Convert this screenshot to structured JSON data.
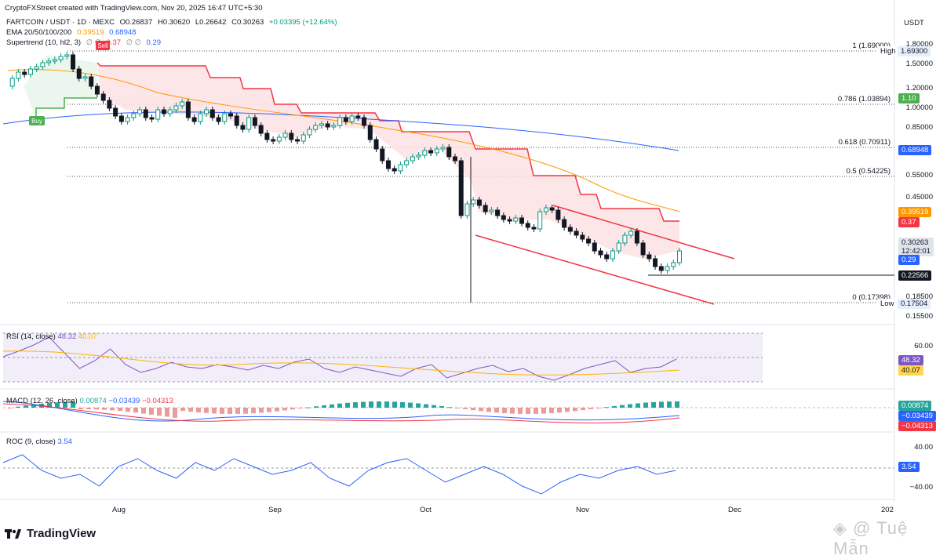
{
  "header": {
    "credit": "CryptoFXStreet created with TradingView.com, Nov 20, 2025 16:47 UTC+5:30",
    "symbol": "FARTCOIN / USDT · 1D · MEXC",
    "ohlc": {
      "o": "O0.26837",
      "h": "H0.30620",
      "l": "L0.26642",
      "c": "C0.30263",
      "chg": "+0.03395 (+12.64%)"
    },
    "ema_label": "EMA 20/50/100/200",
    "ema_values": [
      "0.39519",
      "0.68948"
    ],
    "supertrend_label": "Supertrend (10, hl2, 3)",
    "supertrend_values": [
      "0.37",
      "0.29"
    ]
  },
  "currency": "USDT",
  "price_axis": [
    "1.80000",
    "1.50000",
    "1.20000",
    "1.00000",
    "0.85000",
    "0.55000",
    "0.45000",
    "0.18500",
    "0.15500"
  ],
  "price_tags": {
    "high_label": "High",
    "high_value": "1.69300",
    "fib_1_10": "1.10",
    "ema200": "0.68948",
    "ema_orange": "0.39519",
    "supertrend_red": "0.37",
    "current": "0.30263",
    "countdown": "12:42:01",
    "supertrend_blue": "0.29",
    "support": "0.22566",
    "low_label": "Low",
    "low_value": "0.17504"
  },
  "fib_levels": [
    {
      "label": "1 (1.69000)",
      "price": 1.69
    },
    {
      "label": "0.786 (1.03894)",
      "price": 1.03894
    },
    {
      "label": "0.618 (0.70911)",
      "price": 0.70911
    },
    {
      "label": "0.5 (0.54225)",
      "price": 0.54225
    },
    {
      "label": "0 (0.17398)",
      "price": 0.17398
    }
  ],
  "signals": {
    "sell": "Sell",
    "buy": "Buy"
  },
  "rsi": {
    "label": "RSI (14, close)",
    "value": "48.32",
    "ma": "40.07",
    "axis": "60.00"
  },
  "macd": {
    "label": "MACD (12, 26, close)",
    "hist": "0.00874",
    "macd": "−0.03439",
    "signal": "−0.04313"
  },
  "roc": {
    "label": "ROC (9, close)",
    "value": "3.54",
    "axis_top": "40.00",
    "axis_bottom": "−40.00"
  },
  "x_axis": [
    "Aug",
    "Sep",
    "Oct",
    "Nov",
    "Dec",
    "202"
  ],
  "colors": {
    "up": "#089981",
    "down": "#131722",
    "ema200": "#2962ff",
    "ema_orange": "#ff9800",
    "supertrend": "#f23645",
    "supertrend_up": "#4caf50",
    "rsi": "#7e57c2"
  },
  "brand": "TradingView",
  "watermark": "Tuệ Mẫn"
}
